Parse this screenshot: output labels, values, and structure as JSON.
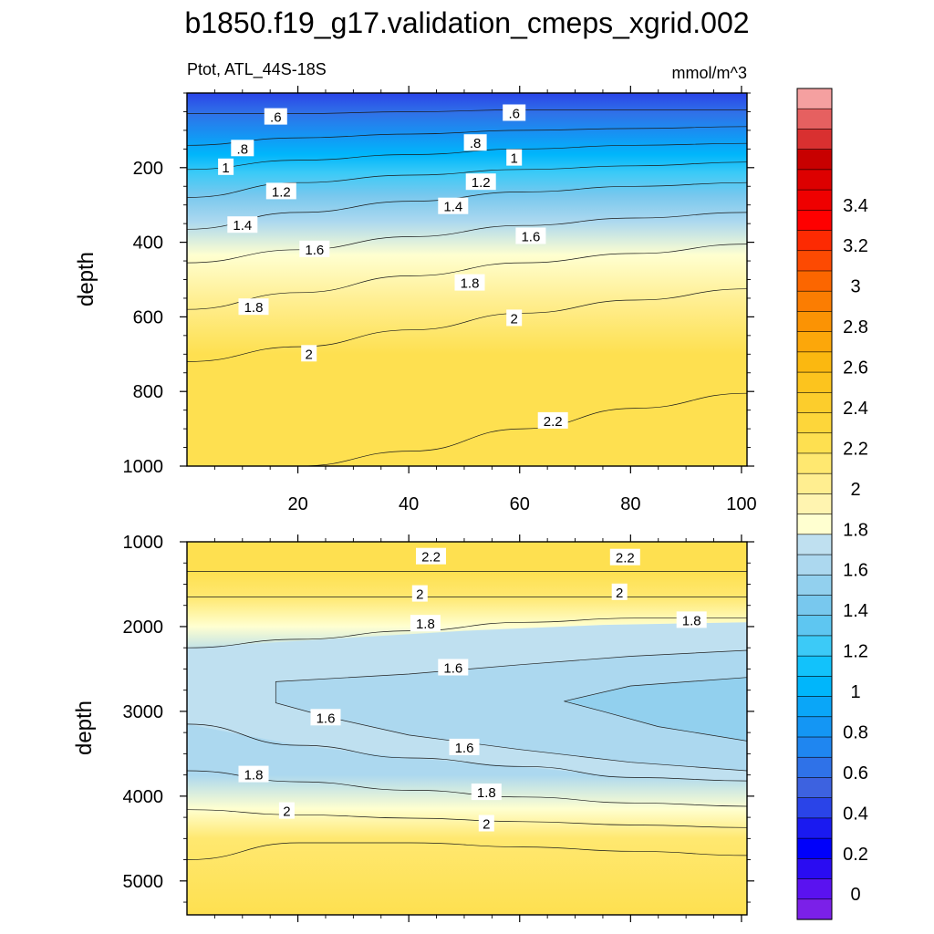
{
  "figure": {
    "title": "b1850.f19_g17.validation_cmeps_xgrid.002"
  },
  "chart_data": [
    {
      "type": "contour",
      "panel": "upper",
      "subtitle_left": "Ptot, ATL_44S-18S",
      "subtitle_right": "mmol/m^3",
      "ylabel": "depth",
      "xlabel": "",
      "xlim": [
        0,
        101
      ],
      "ylim": [
        1000,
        0
      ],
      "xticks": [
        20,
        40,
        60,
        80,
        100
      ],
      "xtick_labels": [
        "20",
        "40",
        "60",
        "80",
        "100"
      ],
      "yticks": [
        200,
        400,
        600,
        800,
        1000
      ],
      "ytick_labels": [
        "200",
        "400",
        "600",
        "800",
        "1000"
      ],
      "contour_lines": [
        {
          "level": 0.6,
          "label": ".6",
          "depth": [
            55,
            55,
            50,
            45,
            45,
            45
          ]
        },
        {
          "level": 0.8,
          "label": ".8",
          "depth": [
            140,
            120,
            110,
            100,
            95,
            90
          ]
        },
        {
          "level": 1.0,
          "label": "1",
          "depth": [
            205,
            180,
            165,
            150,
            140,
            135
          ]
        },
        {
          "level": 1.2,
          "label": "1.2",
          "depth": [
            280,
            240,
            220,
            205,
            195,
            185
          ]
        },
        {
          "level": 1.4,
          "label": "1.4",
          "depth": [
            365,
            320,
            290,
            265,
            250,
            240
          ]
        },
        {
          "level": 1.6,
          "label": "1.6",
          "depth": [
            455,
            420,
            385,
            355,
            335,
            320
          ]
        },
        {
          "level": 1.8,
          "label": "1.8",
          "depth": [
            580,
            535,
            490,
            455,
            430,
            405
          ]
        },
        {
          "level": 2.0,
          "label": "2",
          "depth": [
            720,
            680,
            635,
            590,
            555,
            525
          ]
        },
        {
          "level": 2.2,
          "label": "2.2",
          "depth": [
            1000,
            1000,
            960,
            900,
            845,
            805
          ]
        }
      ],
      "contour_labels": [
        {
          "text": ".6",
          "x": 16,
          "depth": 65
        },
        {
          "text": ".6",
          "x": 59,
          "depth": 55
        },
        {
          "text": ".8",
          "x": 10,
          "depth": 150
        },
        {
          "text": ".8",
          "x": 52,
          "depth": 135
        },
        {
          "text": "1",
          "x": 7,
          "depth": 200
        },
        {
          "text": "1",
          "x": 59,
          "depth": 175
        },
        {
          "text": "1.2",
          "x": 17,
          "depth": 265
        },
        {
          "text": "1.2",
          "x": 53,
          "depth": 240
        },
        {
          "text": "1.4",
          "x": 48,
          "depth": 305
        },
        {
          "text": "1.4",
          "x": 10,
          "depth": 355
        },
        {
          "text": "1.6",
          "x": 23,
          "depth": 420
        },
        {
          "text": "1.6",
          "x": 62,
          "depth": 385
        },
        {
          "text": "1.8",
          "x": 51,
          "depth": 510
        },
        {
          "text": "1.8",
          "x": 12,
          "depth": 575
        },
        {
          "text": "2",
          "x": 59,
          "depth": 605
        },
        {
          "text": "2",
          "x": 22,
          "depth": 700
        },
        {
          "text": "2.2",
          "x": 66,
          "depth": 880
        }
      ]
    },
    {
      "type": "contour",
      "panel": "lower",
      "subtitle_left": "",
      "subtitle_right": "",
      "ylabel": "depth",
      "xlabel": "",
      "xlim": [
        0,
        101
      ],
      "ylim": [
        5400,
        1000
      ],
      "xticks": [
        20,
        40,
        60,
        80,
        100
      ],
      "xtick_labels": [
        "",
        "",
        "",
        "",
        ""
      ],
      "yticks": [
        1000,
        2000,
        3000,
        4000,
        5000
      ],
      "ytick_labels": [
        "1000",
        "2000",
        "3000",
        "4000",
        "5000"
      ],
      "contour_lines": [
        {
          "level": 2.2,
          "label": "2.2",
          "depth": [
            1350,
            1350,
            1350,
            1350,
            1350,
            1350
          ]
        },
        {
          "level": 2.0,
          "label": "2",
          "depth": [
            1650,
            1650,
            1650,
            1650,
            1650,
            1650
          ]
        },
        {
          "level": 1.8,
          "label": "1.8",
          "depth": [
            2250,
            2150,
            2050,
            1950,
            1900,
            1900
          ]
        },
        {
          "level": 1.6,
          "label": "1.6",
          "depth": [
            3150,
            3400,
            3550,
            3650,
            3780,
            3820
          ]
        },
        {
          "level": 1.8,
          "label": "1.8",
          "depth": [
            3700,
            3830,
            3930,
            4010,
            4080,
            4120
          ]
        },
        {
          "level": 2.0,
          "label": "2",
          "depth": [
            4160,
            4220,
            4260,
            4300,
            4340,
            4370
          ]
        },
        {
          "level": 2.2,
          "label": "2.2",
          "depth": [
            4750,
            4550,
            4550,
            4600,
            4650,
            4700
          ]
        }
      ],
      "contour_labels": [
        {
          "text": "2.2",
          "x": 44,
          "depth": 1180
        },
        {
          "text": "2.2",
          "x": 79,
          "depth": 1190
        },
        {
          "text": "2",
          "x": 42,
          "depth": 1620
        },
        {
          "text": "2",
          "x": 78,
          "depth": 1600
        },
        {
          "text": "1.8",
          "x": 43,
          "depth": 1970
        },
        {
          "text": "1.8",
          "x": 91,
          "depth": 1930
        },
        {
          "text": "1.6",
          "x": 48,
          "depth": 2490
        },
        {
          "text": "1.6",
          "x": 25,
          "depth": 3080
        },
        {
          "text": "1.6",
          "x": 50,
          "depth": 3430
        },
        {
          "text": "1.8",
          "x": 12,
          "depth": 3750
        },
        {
          "text": "1.8",
          "x": 54,
          "depth": 3960
        },
        {
          "text": "2",
          "x": 18,
          "depth": 4180
        },
        {
          "text": "2",
          "x": 54,
          "depth": 4330
        }
      ]
    }
  ],
  "colorbar": {
    "levels": [
      0,
      0.2,
      0.4,
      0.6,
      0.8,
      1,
      1.2,
      1.4,
      1.6,
      1.8,
      2,
      2.2,
      2.4,
      2.6,
      2.8,
      3,
      3.2,
      3.4
    ],
    "tick_labels": [
      "0",
      "0.2",
      "0.4",
      "0.6",
      "0.8",
      "1",
      "1.2",
      "1.4",
      "1.6",
      "1.8",
      "2",
      "2.2",
      "2.4",
      "2.6",
      "2.8",
      "3",
      "3.2",
      "3.4"
    ],
    "colors": [
      "#7b20e8",
      "#5a12f0",
      "#2a0cf2",
      "#0000fa",
      "#1a1af0",
      "#2a44e8",
      "#3d62e0",
      "#2f72e8",
      "#1f86f0",
      "#1496f4",
      "#0aa6f8",
      "#00b6fb",
      "#12c2fb",
      "#3ccaf7",
      "#5ec6f1",
      "#78c8ee",
      "#92d0ee",
      "#acd8ef",
      "#bfe0f0",
      "#ffffd0",
      "#fff4b0",
      "#ffee90",
      "#ffe870",
      "#fee050",
      "#fdd63a",
      "#fccd2c",
      "#fcc41e",
      "#fbb810",
      "#fca70a",
      "#fb9304",
      "#fb7d02",
      "#fc6600",
      "#fd4a02",
      "#fd2a02",
      "#fe0000",
      "#ef0000",
      "#dd0000",
      "#c80000",
      "#d93030",
      "#e66060",
      "#f5a0a0"
    ]
  }
}
